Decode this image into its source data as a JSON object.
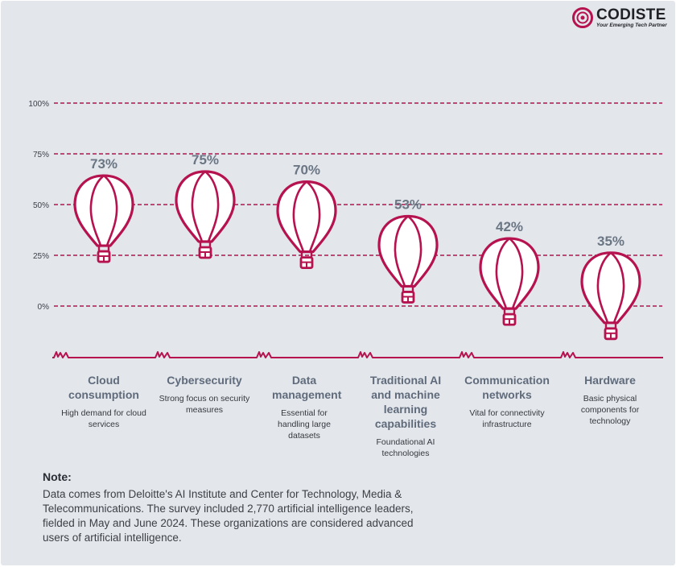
{
  "brand": {
    "name": "CODISTE",
    "tagline": "Your Emerging Tech Partner",
    "logo_icon": "codiste-logo-icon",
    "color": "#b5124f"
  },
  "chart_data": {
    "type": "bar",
    "style": "pictorial-hot-air-balloons",
    "categories": [
      "Cloud consumption",
      "Cybersecurity",
      "Data management",
      "Traditional AI and machine learning capabilities",
      "Communication networks",
      "Hardware"
    ],
    "descriptions": [
      "High demand for cloud services",
      "Strong focus on security measures",
      "Essential for handling large datasets",
      "Foundational AI technologies",
      "Vital for connectivity infrastructure",
      "Basic physical components for technology"
    ],
    "values": [
      73,
      75,
      70,
      53,
      42,
      35
    ],
    "value_labels": [
      "73%",
      "75%",
      "70%",
      "53%",
      "42%",
      "35%"
    ],
    "ylim": [
      0,
      100
    ],
    "yticks": [
      100,
      75,
      50,
      25,
      0
    ],
    "ytick_labels": [
      "100%",
      "75%",
      "50%",
      "25%",
      "0%"
    ],
    "grid": true,
    "title": "",
    "xlabel": "",
    "ylabel": ""
  },
  "colors": {
    "accent": "#b5124f",
    "balloon_fill": "#ffffff",
    "value_label": "#6b7684",
    "background": "#e3e6eb"
  },
  "note": {
    "heading": "Note:",
    "text": "Data comes from Deloitte's AI Institute and Center for Technology, Media & Telecommunications. The survey included 2,770 artificial intelligence leaders, fielded in May and June 2024. These organizations are considered advanced users of artificial intelligence."
  }
}
